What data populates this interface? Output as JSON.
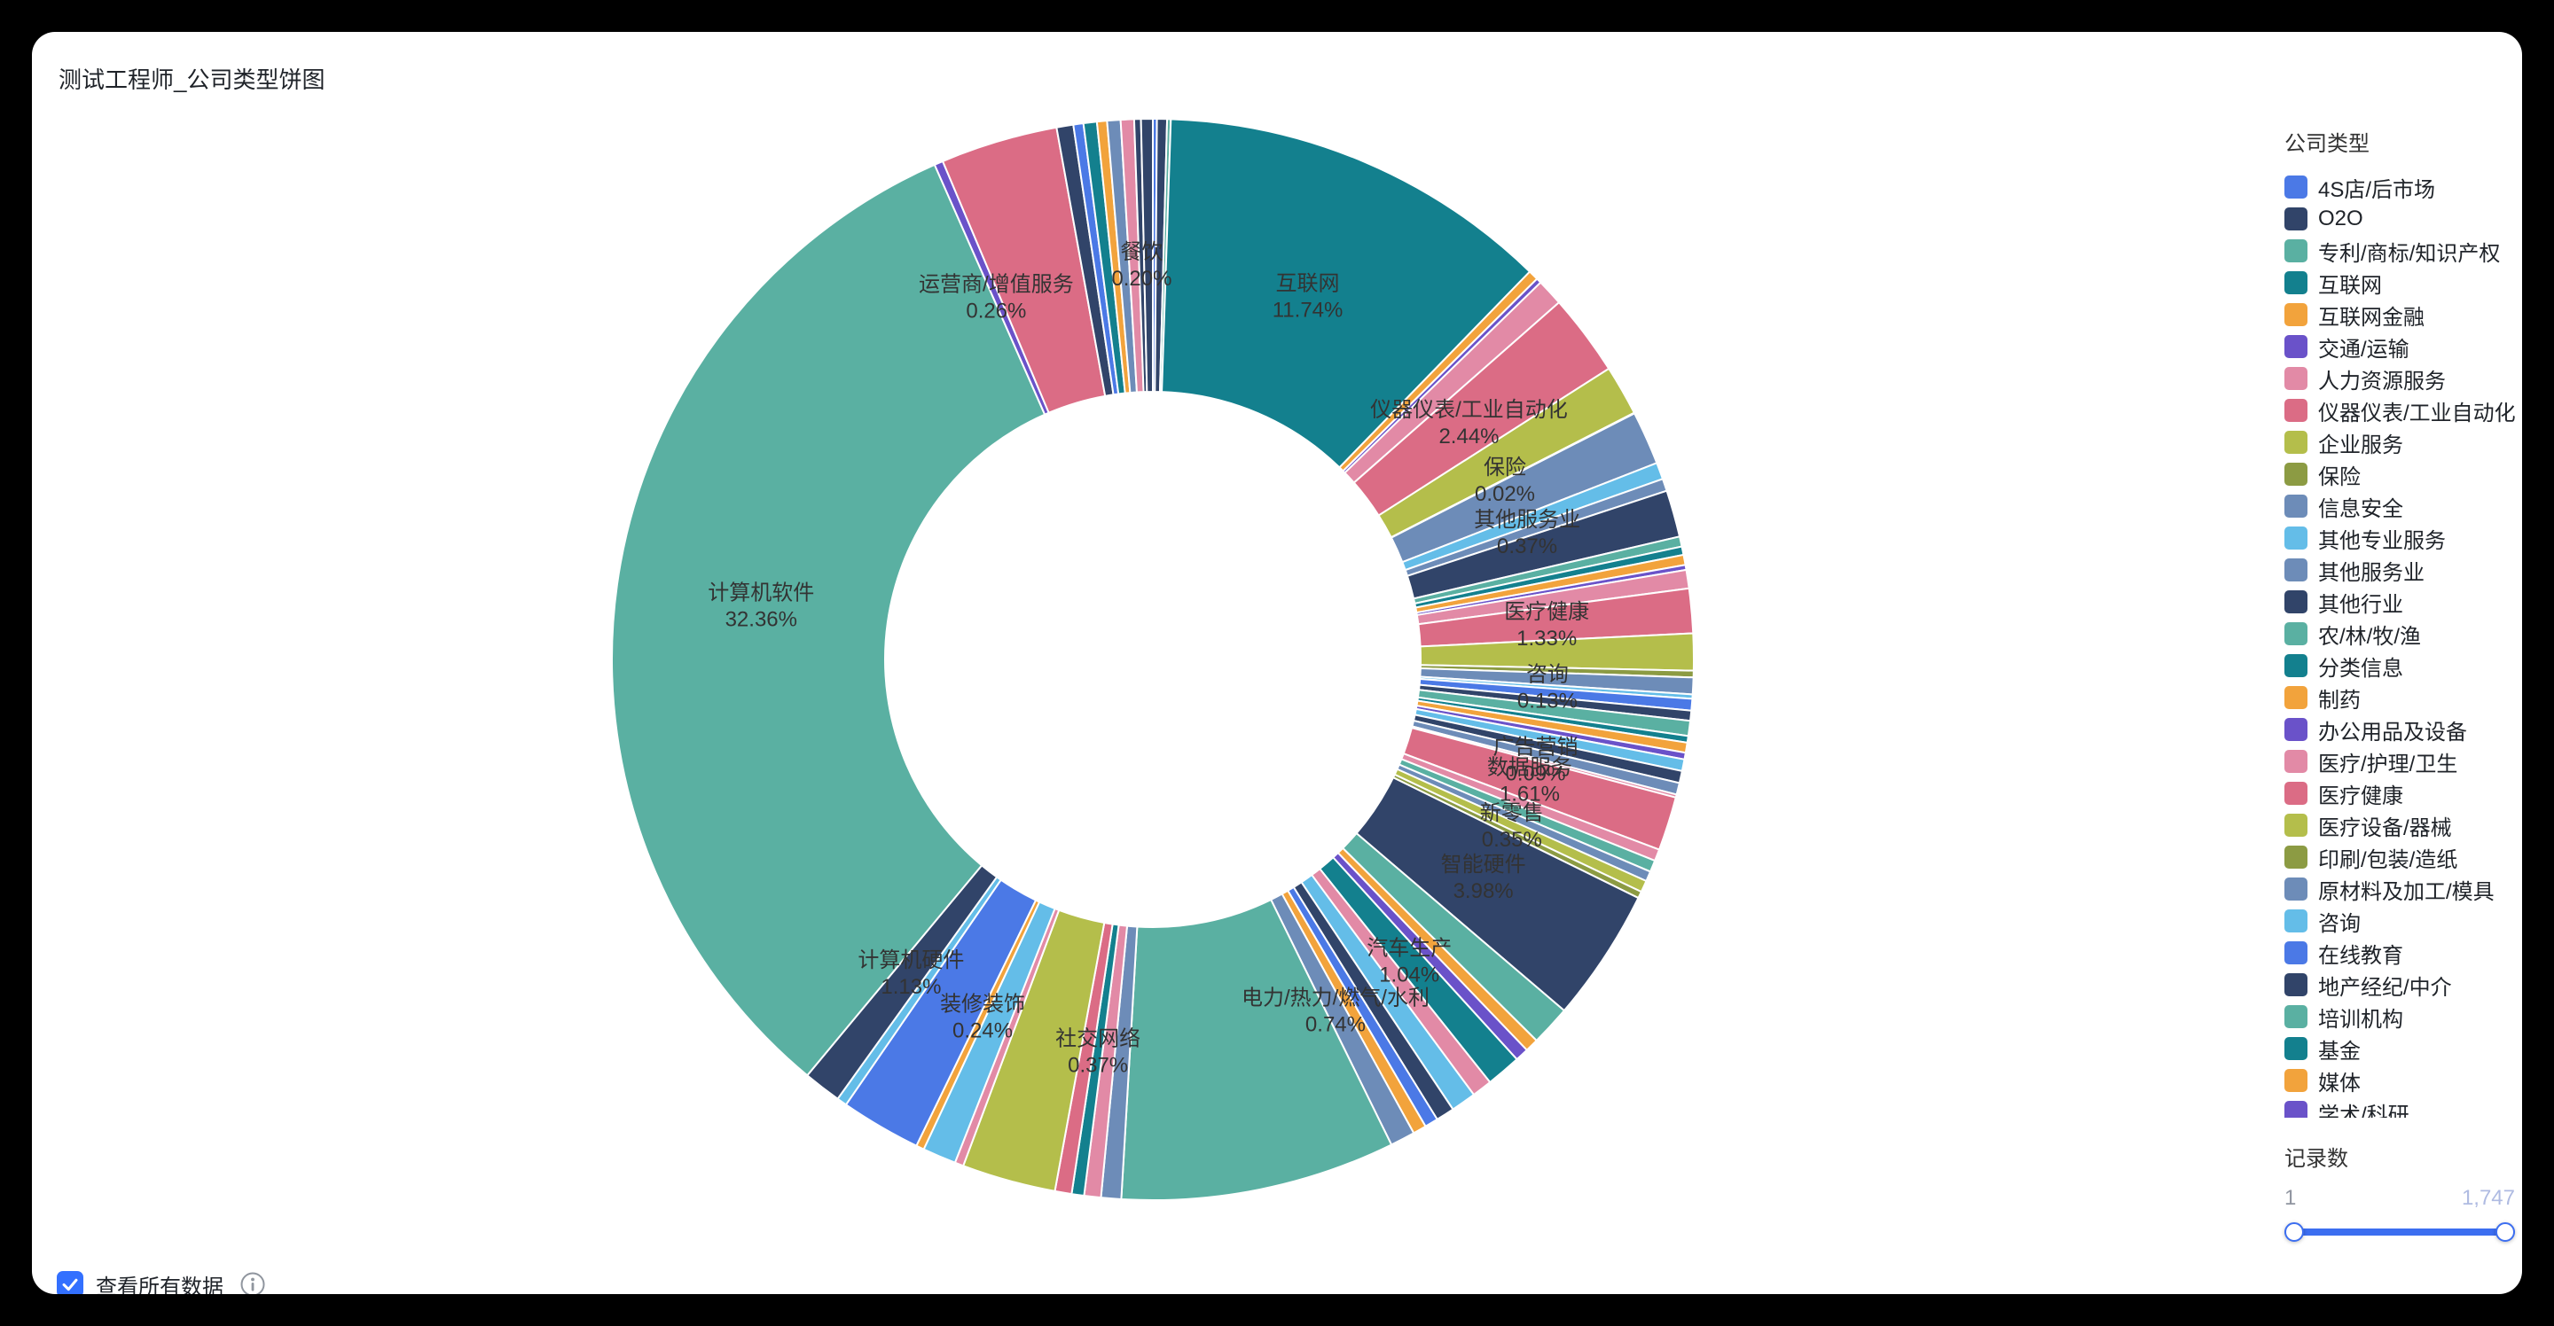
{
  "header": {
    "title": "测试工程师_公司类型饼图"
  },
  "palette": {
    "blue": "#4B79E6",
    "navy": "#314469",
    "seafoam": "#5AB0A2",
    "darkteal": "#13808E",
    "orange": "#F2A33C",
    "purple": "#6A52C9",
    "pink": "#E28AA6",
    "rose": "#DB6C85",
    "yellowgreen": "#B4BE4B",
    "olive": "#8C9B43",
    "bluegray": "#6D8CB8",
    "lightblue": "#64BDE8"
  },
  "chart_data": {
    "type": "pie",
    "donut": true,
    "title": "测试工程师_公司类型饼图",
    "legend_position": "right",
    "units": "percent",
    "slices": [
      {
        "label": "4S店/后市场",
        "value": 0.12,
        "color": "blue"
      },
      {
        "label": "O2O",
        "value": 0.3,
        "color": "navy"
      },
      {
        "label": "专利/商标/知识产权",
        "value": 0.11,
        "color": "seafoam"
      },
      {
        "label": "互联网",
        "value": 11.74,
        "color": "darkteal",
        "pct_text": "11.74%"
      },
      {
        "label": "互联网金融",
        "value": 0.3,
        "color": "orange"
      },
      {
        "label": "交通/运输",
        "value": 0.15,
        "color": "purple"
      },
      {
        "label": "人力资源服务",
        "value": 0.8,
        "color": "pink"
      },
      {
        "label": "仪器仪表/工业自动化",
        "value": 2.44,
        "color": "rose",
        "pct_text": "2.44%"
      },
      {
        "label": "企业服务",
        "value": 1.5,
        "color": "yellowgreen"
      },
      {
        "label": "保险",
        "value": 0.02,
        "color": "olive",
        "pct_text": "0.02%"
      },
      {
        "label": "信息安全",
        "value": 1.6,
        "color": "bluegray"
      },
      {
        "label": "其他专业服务",
        "value": 0.5,
        "color": "lightblue"
      },
      {
        "label": "其他服务业",
        "value": 0.37,
        "color": "bluegray",
        "pct_text": "0.37%"
      },
      {
        "label": "其他行业",
        "value": 1.4,
        "color": "navy"
      },
      {
        "label": "农/林/牧/渔",
        "value": 0.3,
        "color": "seafoam"
      },
      {
        "label": "分类信息",
        "value": 0.25,
        "color": "darkteal"
      },
      {
        "label": "制药",
        "value": 0.3,
        "color": "orange"
      },
      {
        "label": "办公用品及设备",
        "value": 0.15,
        "color": "purple"
      },
      {
        "label": "医疗/护理/卫生",
        "value": 0.55,
        "color": "pink"
      },
      {
        "label": "医疗健康",
        "value": 1.33,
        "color": "rose",
        "pct_text": "1.33%"
      },
      {
        "label": "医疗设备/器械",
        "value": 1.1,
        "color": "yellowgreen"
      },
      {
        "label": "印刷/包装/造纸",
        "value": 0.2,
        "color": "olive"
      },
      {
        "label": "原材料及加工/模具",
        "value": 0.5,
        "color": "bluegray"
      },
      {
        "label": "咨询",
        "value": 0.13,
        "color": "lightblue",
        "pct_text": "0.13%"
      },
      {
        "label": "在线教育",
        "value": 0.35,
        "color": "blue"
      },
      {
        "label": "地产经纪/中介",
        "value": 0.3,
        "color": "navy"
      },
      {
        "label": "培训机构",
        "value": 0.45,
        "color": "seafoam"
      },
      {
        "label": "基金",
        "value": 0.2,
        "color": "darkteal"
      },
      {
        "label": "媒体",
        "value": 0.3,
        "color": "orange"
      },
      {
        "label": "学术/科研",
        "value": 0.2,
        "color": "purple"
      },
      {
        "label": "",
        "value": 0.35,
        "color": "lightblue"
      },
      {
        "label": "",
        "value": 0.36,
        "color": "navy"
      },
      {
        "label": "",
        "value": 0.35,
        "color": "bluegray"
      },
      {
        "label": "广告营销",
        "value": 0.09,
        "color": "pink",
        "pct_text": "0.09%"
      },
      {
        "label": "数据服务",
        "value": 1.61,
        "color": "rose",
        "pct_text": "1.61%"
      },
      {
        "label": "",
        "value": 0.35,
        "color": "pink"
      },
      {
        "label": "",
        "value": 0.35,
        "color": "seafoam"
      },
      {
        "label": "",
        "value": 0.3,
        "color": "bluegray"
      },
      {
        "label": "新零售",
        "value": 0.35,
        "color": "yellowgreen",
        "pct_text": "0.35%"
      },
      {
        "label": "",
        "value": 0.2,
        "color": "olive"
      },
      {
        "label": "智能硬件",
        "value": 3.98,
        "color": "navy",
        "pct_text": "3.98%"
      },
      {
        "label": "",
        "value": 1.2,
        "color": "seafoam"
      },
      {
        "label": "",
        "value": 0.4,
        "color": "orange"
      },
      {
        "label": "",
        "value": 0.4,
        "color": "purple"
      },
      {
        "label": "汽车生产",
        "value": 1.04,
        "color": "darkteal",
        "pct_text": "1.04%"
      },
      {
        "label": "",
        "value": 0.6,
        "color": "pink"
      },
      {
        "label": "",
        "value": 0.75,
        "color": "lightblue"
      },
      {
        "label": "",
        "value": 0.55,
        "color": "navy"
      },
      {
        "label": "",
        "value": 0.4,
        "color": "blue"
      },
      {
        "label": "",
        "value": 0.4,
        "color": "orange"
      },
      {
        "label": "电力/热力/燃气/水利",
        "value": 0.74,
        "color": "bluegray",
        "pct_text": "0.74%"
      },
      {
        "label": "",
        "value": 8.2,
        "color": "seafoam"
      },
      {
        "label": "",
        "value": 0.6,
        "color": "bluegray"
      },
      {
        "label": "",
        "value": 0.5,
        "color": "pink"
      },
      {
        "label": "社交网络",
        "value": 0.37,
        "color": "darkteal",
        "pct_text": "0.37%"
      },
      {
        "label": "",
        "value": 0.5,
        "color": "rose"
      },
      {
        "label": "",
        "value": 2.8,
        "color": "yellowgreen"
      },
      {
        "label": "",
        "value": 0.26,
        "color": "pink"
      },
      {
        "label": "",
        "value": 1.0,
        "color": "lightblue"
      },
      {
        "label": "装修装饰",
        "value": 0.24,
        "color": "orange",
        "pct_text": "0.24%"
      },
      {
        "label": "",
        "value": 2.4,
        "color": "blue"
      },
      {
        "label": "",
        "value": 0.3,
        "color": "lightblue"
      },
      {
        "label": "计算机硬件",
        "value": 1.13,
        "color": "navy",
        "pct_text": "1.13%"
      },
      {
        "label": "计算机软件",
        "value": 32.36,
        "color": "seafoam",
        "pct_text": "32.36%"
      },
      {
        "label": "运营商/增值服务",
        "value": 0.26,
        "color": "purple",
        "pct_text": "0.26%"
      },
      {
        "label": "",
        "value": 3.5,
        "color": "rose"
      },
      {
        "label": "",
        "value": 0.5,
        "color": "navy"
      },
      {
        "label": "",
        "value": 0.3,
        "color": "blue"
      },
      {
        "label": "",
        "value": 0.4,
        "color": "darkteal"
      },
      {
        "label": "",
        "value": 0.3,
        "color": "orange"
      },
      {
        "label": "",
        "value": 0.4,
        "color": "bluegray"
      },
      {
        "label": "",
        "value": 0.4,
        "color": "pink"
      },
      {
        "label": "餐饮",
        "value": 0.2,
        "color": "navy",
        "pct_text": "0.20%"
      },
      {
        "label": "",
        "value": 0.35,
        "color": "navy"
      }
    ]
  },
  "legend": {
    "title": "公司类型",
    "items": [
      {
        "label": "4S店/后市场",
        "color": "blue"
      },
      {
        "label": "O2O",
        "color": "navy"
      },
      {
        "label": "专利/商标/知识产权",
        "color": "seafoam"
      },
      {
        "label": "互联网",
        "color": "darkteal"
      },
      {
        "label": "互联网金融",
        "color": "orange"
      },
      {
        "label": "交通/运输",
        "color": "purple"
      },
      {
        "label": "人力资源服务",
        "color": "pink"
      },
      {
        "label": "仪器仪表/工业自动化",
        "color": "rose"
      },
      {
        "label": "企业服务",
        "color": "yellowgreen"
      },
      {
        "label": "保险",
        "color": "olive"
      },
      {
        "label": "信息安全",
        "color": "bluegray"
      },
      {
        "label": "其他专业服务",
        "color": "lightblue"
      },
      {
        "label": "其他服务业",
        "color": "bluegray"
      },
      {
        "label": "其他行业",
        "color": "navy"
      },
      {
        "label": "农/林/牧/渔",
        "color": "seafoam"
      },
      {
        "label": "分类信息",
        "color": "darkteal"
      },
      {
        "label": "制药",
        "color": "orange"
      },
      {
        "label": "办公用品及设备",
        "color": "purple"
      },
      {
        "label": "医疗/护理/卫生",
        "color": "pink"
      },
      {
        "label": "医疗健康",
        "color": "rose"
      },
      {
        "label": "医疗设备/器械",
        "color": "yellowgreen"
      },
      {
        "label": "印刷/包装/造纸",
        "color": "olive"
      },
      {
        "label": "原材料及加工/模具",
        "color": "bluegray"
      },
      {
        "label": "咨询",
        "color": "lightblue"
      },
      {
        "label": "在线教育",
        "color": "blue"
      },
      {
        "label": "地产经纪/中介",
        "color": "navy"
      },
      {
        "label": "培训机构",
        "color": "seafoam"
      },
      {
        "label": "基金",
        "color": "darkteal"
      },
      {
        "label": "媒体",
        "color": "orange"
      },
      {
        "label": "学术/科研",
        "color": "purple"
      }
    ]
  },
  "record_filter": {
    "title": "记录数",
    "min": "1",
    "max": "1,747",
    "accent": "#3C6EF0"
  },
  "footer": {
    "view_all_label": "查看所有数据",
    "checked": true,
    "checkbox_color": "#3370FF"
  }
}
